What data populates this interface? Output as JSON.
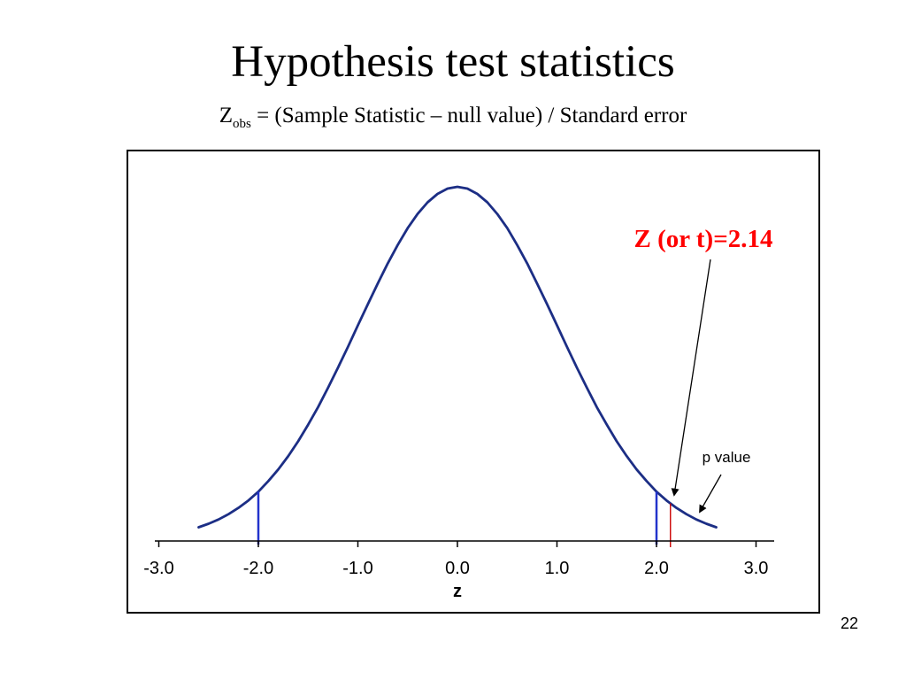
{
  "slide": {
    "title": "Hypothesis test statistics",
    "subtitle": {
      "base": "Z",
      "subscript": "obs",
      "rest": " = (Sample Statistic – null value) / Standard error"
    },
    "page_number": "22"
  },
  "chart_data": {
    "type": "line",
    "title": "",
    "xlabel": "z",
    "ylabel": "",
    "x_ticks": [
      "-3.0",
      "-2.0",
      "-1.0",
      "0.0",
      "1.0",
      "2.0",
      "3.0"
    ],
    "x_tick_values": [
      -3,
      -2,
      -1,
      0,
      1,
      2,
      3
    ],
    "xlim": [
      -3.3,
      3.3
    ],
    "grid": "off",
    "curve": {
      "name": "standard-normal-density",
      "color": "#1c2e85",
      "x": [
        -2.6,
        -2.5,
        -2.4,
        -2.3,
        -2.2,
        -2.1,
        -2.0,
        -1.9,
        -1.8,
        -1.7,
        -1.6,
        -1.5,
        -1.4,
        -1.3,
        -1.2,
        -1.1,
        -1.0,
        -0.9,
        -0.8,
        -0.7,
        -0.6,
        -0.5,
        -0.4,
        -0.3,
        -0.2,
        -0.1,
        0.0,
        0.1,
        0.2,
        0.3,
        0.4,
        0.5,
        0.6,
        0.7,
        0.8,
        0.9,
        1.0,
        1.1,
        1.2,
        1.3,
        1.4,
        1.5,
        1.6,
        1.7,
        1.8,
        1.9,
        2.0,
        2.1,
        2.2,
        2.3,
        2.4,
        2.5,
        2.6
      ],
      "y": [
        0.034,
        0.044,
        0.056,
        0.071,
        0.089,
        0.11,
        0.135,
        0.165,
        0.198,
        0.236,
        0.278,
        0.325,
        0.375,
        0.43,
        0.487,
        0.546,
        0.607,
        0.667,
        0.726,
        0.783,
        0.835,
        0.883,
        0.923,
        0.956,
        0.98,
        0.995,
        1.0,
        0.995,
        0.98,
        0.956,
        0.923,
        0.883,
        0.835,
        0.783,
        0.726,
        0.667,
        0.607,
        0.546,
        0.487,
        0.43,
        0.375,
        0.325,
        0.278,
        0.236,
        0.198,
        0.165,
        0.135,
        0.11,
        0.089,
        0.071,
        0.056,
        0.044,
        0.034
      ]
    },
    "markers": [
      {
        "name": "critical-line-negative",
        "x": -2.0,
        "color": "#2233cc",
        "style": "solid"
      },
      {
        "name": "critical-line-positive",
        "x": 2.0,
        "color": "#2233cc",
        "style": "solid"
      },
      {
        "name": "observed-statistic-line",
        "x": 2.14,
        "color": "#cc0000",
        "style": "thin"
      }
    ],
    "annotations": [
      {
        "name": "z-observed-label",
        "text": "Z (or t)=2.14",
        "color": "#ff0000",
        "points_to_x": 2.14
      },
      {
        "name": "p-value-label",
        "text": "p value",
        "color": "#000000"
      }
    ]
  }
}
